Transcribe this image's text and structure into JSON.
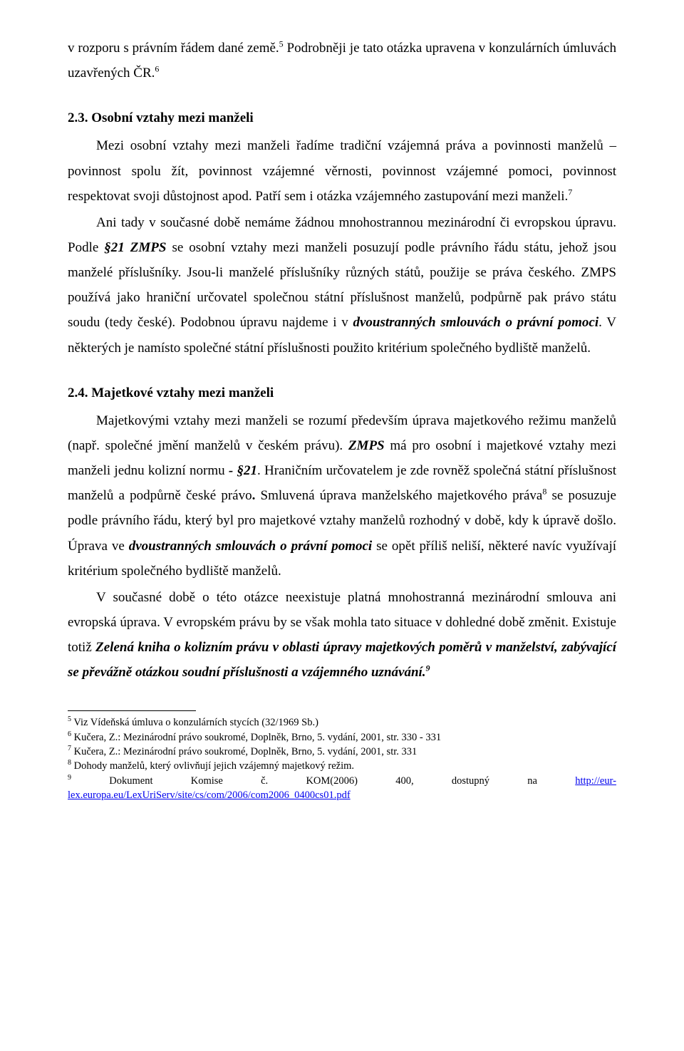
{
  "colors": {
    "text": "#000000",
    "background": "#ffffff",
    "link": "#0000ee",
    "separator": "#000000"
  },
  "typography": {
    "body_font": "Times New Roman",
    "body_size_pt": 12,
    "footnote_size_pt": 9,
    "line_height": 1.85,
    "heading_weight": "bold"
  },
  "intro": {
    "p1_a": "v rozporu s právním řádem dané země.",
    "sup1": "5",
    "p1_b": " Podrobněji je tato otázka upravena v konzulárních úmluvách uzavřených ČR.",
    "sup2": "6"
  },
  "section23": {
    "heading": "2.3. Osobní vztahy mezi manželi",
    "p1": "Mezi osobní vztahy mezi manželi řadíme tradiční vzájemná práva a povinnosti manželů – povinnost spolu žít, povinnost vzájemné věrnosti, povinnost vzájemné pomoci, povinnost respektovat svoji důstojnost apod. Patří sem i otázka vzájemného zastupování mezi manželi.",
    "sup1": "7",
    "p2_a": "Ani tady v současné době nemáme žádnou mnohostrannou mezinárodní či evropskou úpravu. Podle ",
    "p2_b": "§21 ZMPS",
    "p2_c": " se osobní vztahy mezi manželi posuzují podle právního řádu státu, jehož jsou manželé příslušníky. Jsou-li manželé příslušníky různých států, použije se práva českého. ZMPS používá jako hraniční určovatel společnou státní příslušnost manželů, podpůrně pak právo státu soudu (tedy české). Podobnou úpravu najdeme i v ",
    "p2_d": "dvoustranných smlouvách o právní pomoci",
    "p2_e": ". V některých je namísto společné státní příslušnosti použito kritérium společného bydliště manželů."
  },
  "section24": {
    "heading": "2.4. Majetkové vztahy mezi manželi",
    "p1_a": "Majetkovými vztahy mezi manželi se rozumí především úprava majetkového režimu manželů (např. společné jmění manželů v českém právu). ",
    "p1_b": "ZMPS",
    "p1_c": " má pro osobní i majetkové vztahy mezi manželi jednu kolizní normu ",
    "p1_d": "- §21",
    "p1_e": ". Hraničním určovatelem je zde rovněž společná státní příslušnost manželů a podpůrně české právo",
    "p1_f": ". ",
    "p1_g": "Smluvená úprava  manželského majetkového práva",
    "sup1": "8",
    "p1_h": " se posuzuje podle právního řádu, který byl pro majetkové vztahy manželů rozhodný v době, kdy k úpravě došlo. Úprava ve ",
    "p1_i": "dvoustranných smlouvách o právní pomoci",
    "p1_j": " se opět příliš neliší, některé navíc využívají kritérium společného bydliště manželů.",
    "p2_a": "V současné době o této otázce neexistuje platná mnohostranná mezinárodní smlouva ani evropská úprava. V evropském právu by se však mohla tato situace v dohledné době změnit. Existuje totiž ",
    "p2_b": "Zelená kniha o kolizním právu v oblasti úpravy majetkových poměrů v manželství, zabývající se převážně otázkou soudní příslušnosti a vzájemného uznávání.",
    "sup2": "9"
  },
  "footnotes": {
    "f5": {
      "num": "5",
      "text": " Viz Vídeňská úmluva o konzulárních stycích (32/1969 Sb.)"
    },
    "f6": {
      "num": "6",
      "text": " Kučera, Z.: Mezinárodní právo soukromé, Doplněk, Brno, 5. vydání, 2001, str. 330 - 331"
    },
    "f7": {
      "num": "7",
      "text": " Kučera, Z.: Mezinárodní právo soukromé, Doplněk, Brno, 5. vydání, 2001, str. 331"
    },
    "f8": {
      "num": "8",
      "text": " Dohody manželů, který ovlivňují jejich vzájemný majetkový režim."
    },
    "f9": {
      "num": "9",
      "w1": "Dokument",
      "w2": "Komise",
      "w3": "č.",
      "w4": "KOM(2006)",
      "w5": "400,",
      "w6": "dostupný",
      "w7": "na",
      "link1": "http://eur-",
      "link2": "lex.europa.eu/LexUriServ/site/cs/com/2006/com2006_0400cs01.pdf"
    }
  }
}
